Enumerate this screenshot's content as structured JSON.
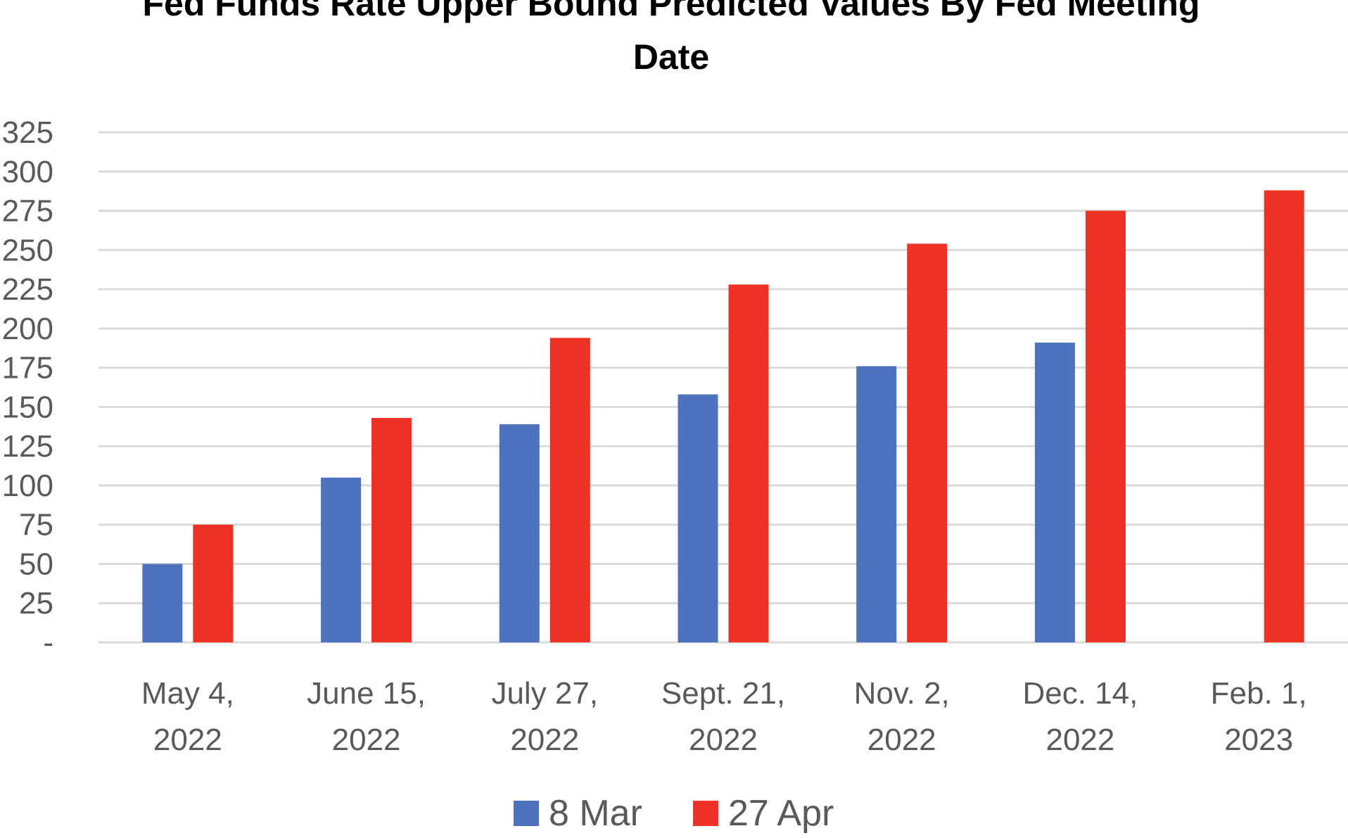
{
  "chart_data": {
    "type": "bar",
    "title_lines": [
      "Fed Funds Rate Upper Bound Predicted Values By Fed Meeting",
      "Date"
    ],
    "categories": [
      [
        "May 4,",
        "2022"
      ],
      [
        "June 15,",
        "2022"
      ],
      [
        "July 27,",
        "2022"
      ],
      [
        "Sept. 21,",
        "2022"
      ],
      [
        "Nov. 2,",
        "2022"
      ],
      [
        "Dec. 14,",
        "2022"
      ],
      [
        "Feb. 1,",
        "2023"
      ]
    ],
    "series": [
      {
        "name": "8 Mar",
        "color": "#4e72bd",
        "values": [
          50,
          105,
          139,
          158,
          176,
          191,
          null
        ]
      },
      {
        "name": "27 Apr",
        "color": "#ee3124",
        "values": [
          75,
          143,
          194,
          228,
          254,
          275,
          288
        ]
      }
    ],
    "yticks": [
      "-",
      "25",
      "50",
      "75",
      "100",
      "125",
      "150",
      "175",
      "200",
      "225",
      "250",
      "275",
      "300",
      "325"
    ],
    "ylim": [
      0,
      325
    ],
    "grid": true,
    "legend_position": "bottom"
  }
}
